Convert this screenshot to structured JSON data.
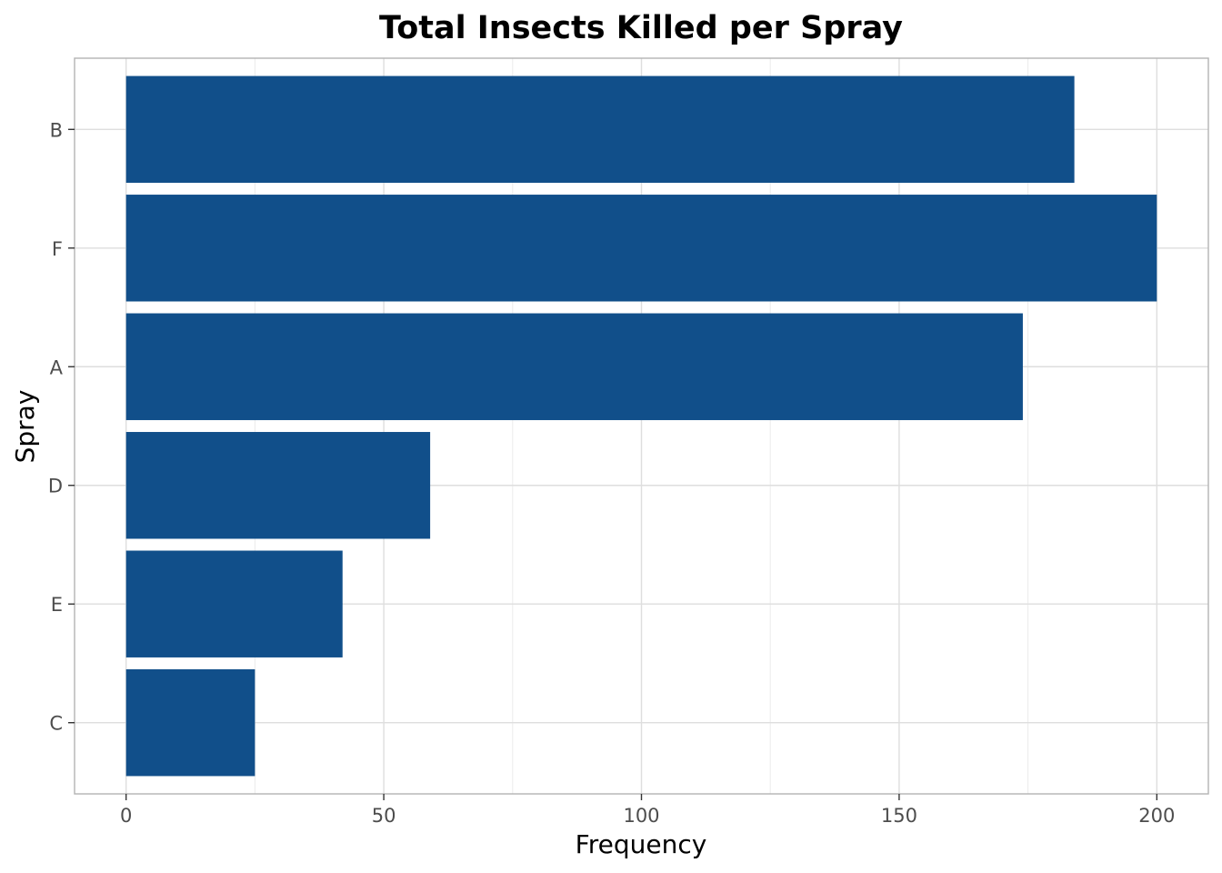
{
  "chart_data": {
    "type": "bar",
    "orientation": "horizontal",
    "title": "Total Insects Killed per Spray",
    "xlabel": "Frequency",
    "ylabel": "Spray",
    "categories": [
      "B",
      "F",
      "A",
      "D",
      "E",
      "C"
    ],
    "values": [
      184,
      200,
      174,
      59,
      42,
      25
    ],
    "xlim": [
      -10,
      210
    ],
    "x_ticks": [
      0,
      50,
      100,
      150,
      200
    ],
    "x_minor_ticks": [
      25,
      75,
      125,
      175
    ],
    "bar_color": "#114F8A",
    "grid": true,
    "legend": "none"
  }
}
